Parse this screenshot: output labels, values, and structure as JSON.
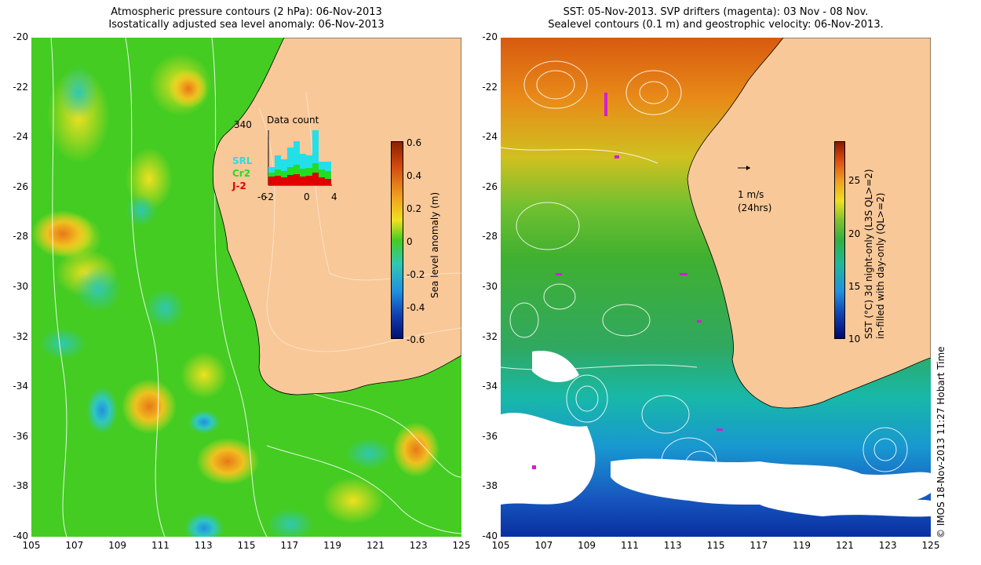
{
  "left_panel": {
    "title_line1": "Atmospheric pressure contours (2 hPa): 06-Nov-2013",
    "title_line2": "Isostatically adjusted sea level anomaly: 06-Nov-2013",
    "colorbar": {
      "label": "Sea level anomaly (m)",
      "ticks": [
        "0.6",
        "0.4",
        "0.2",
        "0",
        "-0.2",
        "-0.4",
        "-0.6"
      ]
    },
    "inset": {
      "title": "Data count",
      "max_label": "340",
      "xticks": [
        "-6",
        "-2",
        "0",
        "4"
      ],
      "legend": [
        {
          "label": "SRL",
          "color": "#22e0e8"
        },
        {
          "label": "Cr2",
          "color": "#22dd22"
        },
        {
          "label": "J-2",
          "color": "#e00000"
        }
      ]
    }
  },
  "right_panel": {
    "title_line1": "SST: 05-Nov-2013. SVP drifters (magenta): 03 Nov - 08 Nov.",
    "title_line2": "Sealevel contours (0.1 m) and geostrophic velocity: 06-Nov-2013.",
    "colorbar": {
      "label_line1": "SST (°C) 3d night-only (L3S QL>=2)",
      "label_line2": "in-filled with day-only (QL>=2)",
      "ticks": [
        "25",
        "20",
        "15",
        "10"
      ]
    },
    "velocity_scale": {
      "line1": "1 m/s",
      "line2": "(24hrs)"
    }
  },
  "axes": {
    "y_ticks": [
      "-20",
      "-22",
      "-24",
      "-26",
      "-28",
      "-30",
      "-32",
      "-34",
      "-36",
      "-38",
      "-40"
    ],
    "x_ticks": [
      "105",
      "107",
      "109",
      "111",
      "113",
      "115",
      "117",
      "119",
      "121",
      "123",
      "125"
    ]
  },
  "credit": "© IMOS 18-Nov-2013 11:27 Hobart Time",
  "colors": {
    "land": "#f8c898",
    "ssla_ocean": "#44cc22",
    "sst_warm": "#e07018",
    "sst_mid": "#33b030",
    "sst_cool": "#18b8a8",
    "sst_cold": "#1040b0",
    "cloud": "#ffffff"
  }
}
